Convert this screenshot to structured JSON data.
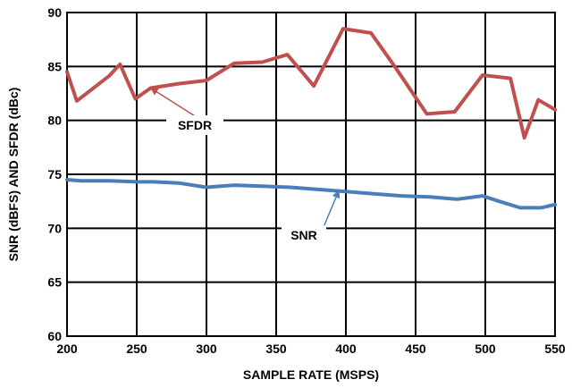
{
  "chart_data": {
    "type": "line",
    "title": "",
    "xlabel": "SAMPLE RATE (MSPS)",
    "ylabel": "SNR (dBFS) AND SFDR (dBc)",
    "xlim": [
      200,
      550
    ],
    "ylim": [
      60,
      90
    ],
    "xticks": [
      200,
      250,
      300,
      350,
      400,
      450,
      500,
      550
    ],
    "yticks": [
      60,
      65,
      70,
      75,
      80,
      85,
      90
    ],
    "grid": true,
    "legend": "none",
    "series": [
      {
        "name": "SFDR",
        "color": "#c0504d",
        "x": [
          200,
          207,
          230,
          238,
          249,
          260,
          280,
          300,
          320,
          340,
          358,
          377,
          398,
          418,
          435,
          458,
          478,
          498,
          518,
          528,
          538,
          550
        ],
        "y": [
          84.5,
          81.8,
          84.1,
          85.2,
          82.0,
          83.0,
          83.4,
          83.7,
          85.3,
          85.4,
          86.1,
          83.2,
          88.5,
          88.1,
          85.0,
          80.6,
          80.8,
          84.2,
          83.9,
          78.4,
          81.9,
          81.0
        ]
      },
      {
        "name": "SNR",
        "color": "#4a7ebb",
        "x": [
          200,
          210,
          230,
          250,
          262,
          280,
          300,
          320,
          340,
          360,
          380,
          400,
          420,
          440,
          460,
          480,
          498,
          510,
          525,
          540,
          550
        ],
        "y": [
          74.5,
          74.4,
          74.4,
          74.3,
          74.3,
          74.2,
          73.8,
          74.0,
          73.9,
          73.8,
          73.6,
          73.4,
          73.2,
          73.0,
          72.9,
          72.7,
          73.0,
          72.5,
          71.9,
          71.9,
          72.2
        ]
      }
    ],
    "annotations": [
      {
        "text": "SFDR",
        "target_x": 260,
        "target_y": 83.0
      },
      {
        "text": "SNR",
        "target_x": 395,
        "target_y": 73.5
      }
    ]
  }
}
